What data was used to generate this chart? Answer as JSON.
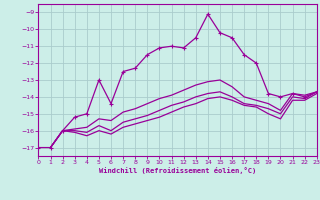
{
  "xlabel": "Windchill (Refroidissement éolien,°C)",
  "bg_color": "#cceee8",
  "grid_color": "#aacccc",
  "line_color": "#990099",
  "xlim": [
    0,
    23
  ],
  "ylim": [
    -17.5,
    -8.5
  ],
  "yticks": [
    -17,
    -16,
    -15,
    -14,
    -13,
    -12,
    -11,
    -10,
    -9
  ],
  "xticks": [
    0,
    1,
    2,
    3,
    4,
    5,
    6,
    7,
    8,
    9,
    10,
    11,
    12,
    13,
    14,
    15,
    16,
    17,
    18,
    19,
    20,
    21,
    22,
    23
  ],
  "s1_x": [
    0,
    1,
    2,
    3,
    4,
    5,
    6,
    7,
    8,
    9,
    10,
    11,
    12,
    13,
    14,
    15,
    16,
    17,
    18,
    19,
    20,
    21,
    22,
    23
  ],
  "s1_y": [
    -17.0,
    -17.0,
    -16.0,
    -15.2,
    -15.0,
    -13.0,
    -14.4,
    -12.5,
    -12.3,
    -11.5,
    -11.1,
    -11.0,
    -11.1,
    -10.5,
    -9.1,
    -10.2,
    -10.5,
    -11.5,
    -12.0,
    -13.8,
    -14.0,
    -13.8,
    -14.0,
    -13.7
  ],
  "s2_x": [
    1,
    2,
    3,
    4,
    5,
    6,
    7,
    8,
    9,
    10,
    11,
    12,
    13,
    14,
    15,
    16,
    17,
    18,
    19,
    20,
    21,
    22,
    23
  ],
  "s2_y": [
    -17.0,
    -16.0,
    -15.9,
    -15.8,
    -15.3,
    -15.4,
    -14.9,
    -14.7,
    -14.4,
    -14.1,
    -13.9,
    -13.6,
    -13.3,
    -13.1,
    -13.0,
    -13.4,
    -14.0,
    -14.2,
    -14.4,
    -14.8,
    -13.8,
    -13.9,
    -13.7
  ],
  "s3_x": [
    1,
    2,
    3,
    4,
    5,
    6,
    7,
    8,
    9,
    10,
    11,
    12,
    13,
    14,
    15,
    16,
    17,
    18,
    19,
    20,
    21,
    22,
    23
  ],
  "s3_y": [
    -17.0,
    -16.0,
    -16.0,
    -16.1,
    -15.7,
    -16.0,
    -15.5,
    -15.3,
    -15.1,
    -14.8,
    -14.5,
    -14.3,
    -14.0,
    -13.8,
    -13.7,
    -14.0,
    -14.4,
    -14.5,
    -14.7,
    -15.0,
    -14.0,
    -14.1,
    -13.7
  ],
  "s4_x": [
    1,
    2,
    3,
    4,
    5,
    6,
    7,
    8,
    9,
    10,
    11,
    12,
    13,
    14,
    15,
    16,
    17,
    18,
    19,
    20,
    21,
    22,
    23
  ],
  "s4_y": [
    -17.0,
    -16.0,
    -16.1,
    -16.3,
    -16.0,
    -16.2,
    -15.8,
    -15.6,
    -15.4,
    -15.2,
    -14.9,
    -14.6,
    -14.4,
    -14.1,
    -14.0,
    -14.2,
    -14.5,
    -14.6,
    -15.0,
    -15.3,
    -14.2,
    -14.2,
    -13.8
  ]
}
